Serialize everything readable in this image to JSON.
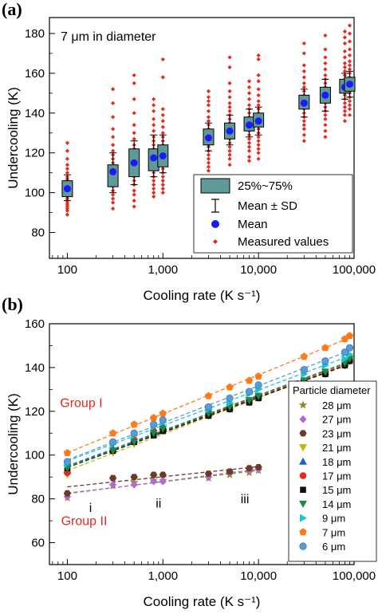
{
  "panel_a": {
    "label": "(a)",
    "annotation": "7 μm in diameter"
  },
  "panel_b": {
    "label": "(b)"
  },
  "chart_data": [
    {
      "type": "box",
      "panel": "(a)",
      "annotation": "7 μm in diameter",
      "xlabel": "Cooling rate (K s⁻¹)",
      "ylabel": "Undercooling (K)",
      "xscale": "log",
      "xlim": [
        65,
        100000
      ],
      "ylim": [
        67,
        188
      ],
      "xticks": [
        100,
        1000,
        10000,
        100000
      ],
      "xtick_labels": [
        "100",
        "1,000",
        "10,000",
        "100,000"
      ],
      "yticks": [
        80,
        100,
        120,
        140,
        160,
        180
      ],
      "legend": {
        "position": "lower-right",
        "entries": [
          "25%~75%",
          "Mean ± SD",
          "Mean",
          "Measured values"
        ]
      },
      "colors": {
        "box": "#5f9998",
        "mean": "#1a1aff",
        "measured": "#e8281e"
      },
      "boxes": [
        {
          "x": 100,
          "mean": 102,
          "q1": 98,
          "q3": 106,
          "sd_low": 96,
          "sd_high": 109,
          "measured": [
            89,
            91,
            92,
            93,
            94,
            95,
            96,
            97,
            98,
            99,
            100,
            101,
            102,
            103,
            104,
            105,
            106,
            107,
            108,
            110,
            112,
            114,
            117,
            121,
            125
          ]
        },
        {
          "x": 300,
          "mean": 110.5,
          "q1": 103,
          "q3": 114,
          "sd_low": 100,
          "sd_high": 120,
          "measured": [
            92,
            95,
            97,
            99,
            101,
            103,
            105,
            107,
            109,
            110,
            111,
            112,
            113,
            115,
            117,
            119,
            121,
            124,
            128,
            132,
            138,
            145,
            152
          ]
        },
        {
          "x": 500,
          "mean": 115,
          "q1": 108,
          "q3": 122,
          "sd_low": 104,
          "sd_high": 126,
          "measured": [
            93,
            96,
            99,
            101,
            104,
            106,
            108,
            110,
            112,
            114,
            115,
            116,
            118,
            120,
            122,
            124,
            127,
            130,
            134,
            140,
            147,
            155,
            159
          ]
        },
        {
          "x": 800,
          "mean": 117.5,
          "q1": 111,
          "q3": 122,
          "sd_low": 108,
          "sd_high": 129,
          "measured": [
            98,
            100,
            102,
            104,
            106,
            108,
            110,
            112,
            114,
            116,
            117,
            118,
            120,
            122,
            124,
            126,
            128,
            131,
            134,
            137,
            141,
            144,
            147
          ]
        },
        {
          "x": 1000,
          "mean": 118.5,
          "q1": 113,
          "q3": 124,
          "sd_low": 110,
          "sd_high": 129,
          "measured": [
            100,
            102,
            104,
            106,
            108,
            110,
            112,
            114,
            116,
            118,
            119,
            120,
            122,
            124,
            126,
            128,
            130,
            133,
            136,
            139,
            142,
            158,
            167
          ]
        },
        {
          "x": 3000,
          "mean": 127.5,
          "q1": 124,
          "q3": 132,
          "sd_low": 121,
          "sd_high": 135,
          "measured": [
            111,
            113,
            115,
            117,
            119,
            121,
            123,
            124,
            125,
            126,
            127,
            128,
            129,
            130,
            132,
            134,
            136,
            138,
            141,
            144,
            146,
            148,
            151
          ]
        },
        {
          "x": 5000,
          "mean": 131,
          "q1": 127,
          "q3": 135,
          "sd_low": 124,
          "sd_high": 139,
          "measured": [
            114,
            117,
            119,
            121,
            123,
            125,
            127,
            129,
            130,
            131,
            132,
            133,
            135,
            137,
            139,
            141,
            143,
            145,
            148,
            151,
            155,
            163,
            168
          ]
        },
        {
          "x": 8000,
          "mean": 134,
          "q1": 131,
          "q3": 138,
          "sd_low": 128,
          "sd_high": 142,
          "measured": [
            116,
            118,
            121,
            123,
            125,
            127,
            129,
            131,
            132,
            133,
            134,
            135,
            136,
            138,
            140,
            142,
            144,
            147,
            150,
            153,
            156
          ]
        },
        {
          "x": 10000,
          "mean": 136,
          "q1": 133,
          "q3": 140,
          "sd_low": 129,
          "sd_high": 143,
          "measured": [
            117,
            120,
            122,
            124,
            126,
            128,
            130,
            132,
            134,
            135,
            136,
            137,
            138,
            140,
            142,
            144,
            146,
            149,
            152,
            156,
            159,
            167,
            169
          ]
        },
        {
          "x": 30000,
          "mean": 145,
          "q1": 142,
          "q3": 149,
          "sd_low": 138,
          "sd_high": 152,
          "measured": [
            126,
            129,
            132,
            134,
            136,
            138,
            140,
            142,
            143,
            144,
            145,
            146,
            147,
            149,
            151,
            153,
            155,
            158,
            161,
            164,
            170,
            175
          ]
        },
        {
          "x": 50000,
          "mean": 149,
          "q1": 145,
          "q3": 153,
          "sd_low": 141,
          "sd_high": 157,
          "measured": [
            128,
            131,
            134,
            137,
            139,
            141,
            143,
            145,
            147,
            148,
            149,
            150,
            151,
            153,
            155,
            157,
            159,
            162,
            165,
            168,
            172,
            179
          ]
        },
        {
          "x": 80000,
          "mean": 153,
          "q1": 150,
          "q3": 157,
          "sd_low": 147,
          "sd_high": 160,
          "measured": [
            136,
            139,
            141,
            143,
            145,
            147,
            149,
            150,
            151,
            152,
            153,
            154,
            155,
            157,
            159,
            161,
            163,
            165,
            168,
            171,
            175,
            178,
            181
          ]
        },
        {
          "x": 90000,
          "mean": 154.5,
          "q1": 151,
          "q3": 158,
          "sd_low": 148,
          "sd_high": 161,
          "measured": [
            139,
            142,
            144,
            146,
            148,
            150,
            151,
            152,
            153,
            154,
            155,
            156,
            157,
            158,
            160,
            162,
            164,
            166,
            169,
            172,
            176,
            180,
            184
          ]
        }
      ]
    },
    {
      "type": "scatter",
      "panel": "(b)",
      "xlabel": "Cooling rate (K s⁻¹)",
      "ylabel": "Undercooling (K)",
      "xscale": "log",
      "xlim": [
        65,
        100000
      ],
      "ylim": [
        50,
        160
      ],
      "xticks": [
        100,
        1000,
        10000,
        100000
      ],
      "xtick_labels": [
        "100",
        "1,000",
        "10,000",
        "100,000"
      ],
      "yticks": [
        60,
        80,
        100,
        120,
        140,
        160
      ],
      "legend": {
        "title": "Particle diameter",
        "position": "right"
      },
      "annotations": [
        {
          "text": "Group I",
          "x": 140,
          "y": 122,
          "color": "#e8281e"
        },
        {
          "text": "Group II",
          "x": 150,
          "y": 68,
          "color": "#e8281e"
        },
        {
          "text": "i",
          "x": 175,
          "y": 74
        },
        {
          "text": "ii",
          "x": 900,
          "y": 76
        },
        {
          "text": "iii",
          "x": 7200,
          "y": 78
        }
      ],
      "series": [
        {
          "name": "28 μm",
          "color": "#8c8a1c",
          "marker": "star",
          "group": "II",
          "x": [
            100,
            300,
            500,
            800,
            1000,
            3000,
            5000,
            8000,
            10000
          ],
          "y": [
            80.5,
            86,
            87.5,
            88.5,
            88.5,
            89.5,
            91,
            92,
            93
          ]
        },
        {
          "name": "27 μm",
          "color": "#b06ad6",
          "marker": "diamond",
          "group": "II",
          "x": [
            100,
            300,
            500,
            800,
            1000,
            3000,
            5000,
            8000,
            10000
          ],
          "y": [
            81,
            86.5,
            86.5,
            88,
            88,
            90,
            92,
            93,
            93.5
          ]
        },
        {
          "name": "23 μm",
          "color": "#6b3a2a",
          "marker": "hexagon",
          "group": "II",
          "x": [
            100,
            300,
            500,
            800,
            1000,
            3000,
            5000,
            8000,
            10000
          ],
          "y": [
            82.5,
            89.5,
            90,
            91,
            91,
            91.5,
            92.5,
            94,
            94.5
          ]
        },
        {
          "name": "21 μm",
          "color": "#d2b400",
          "marker": "triangle-down",
          "group": "I",
          "x": [
            100,
            300,
            500,
            800,
            1000,
            3000,
            5000,
            8000,
            10000,
            30000,
            50000,
            80000,
            90000
          ],
          "y": [
            91,
            101,
            105,
            109,
            111,
            118,
            121,
            124,
            126,
            133,
            137,
            141,
            143
          ]
        },
        {
          "name": "18 μm",
          "color": "#1f63c8",
          "marker": "triangle-up",
          "group": "I",
          "x": [
            100,
            300,
            500,
            800,
            1000,
            3000,
            5000,
            8000,
            10000,
            30000,
            50000,
            80000,
            90000
          ],
          "y": [
            93,
            103,
            107,
            111,
            113,
            119,
            122,
            125,
            127,
            134,
            138,
            142,
            144
          ]
        },
        {
          "name": "17 μm",
          "color": "#e8281e",
          "marker": "circle",
          "group": "I",
          "x": [
            100,
            300,
            500,
            800,
            1000,
            3000,
            5000,
            8000,
            10000,
            30000,
            50000,
            80000,
            90000
          ],
          "y": [
            92,
            102,
            107,
            111,
            112,
            118,
            121,
            125,
            127,
            134,
            137,
            141,
            143
          ]
        },
        {
          "name": "15 μm",
          "color": "#111111",
          "marker": "square",
          "group": "I",
          "x": [
            100,
            300,
            500,
            800,
            1000,
            3000,
            5000,
            8000,
            10000,
            30000,
            50000,
            80000,
            90000
          ],
          "y": [
            94,
            102,
            106,
            109,
            111,
            118,
            121,
            124,
            126,
            133,
            137,
            141,
            143
          ]
        },
        {
          "name": "14 μm",
          "color": "#1a8a4a",
          "marker": "triangle-down",
          "group": "I",
          "x": [
            100,
            300,
            500,
            800,
            1000,
            3000,
            5000,
            8000,
            10000,
            30000,
            50000,
            80000,
            90000
          ],
          "y": [
            94,
            102,
            106,
            110,
            112,
            119,
            122,
            125,
            127,
            134,
            138,
            142,
            144
          ]
        },
        {
          "name": "9 μm",
          "color": "#1fc3cf",
          "marker": "triangle-right",
          "group": "I",
          "x": [
            100,
            300,
            500,
            800,
            1000,
            3000,
            5000,
            8000,
            10000,
            30000,
            50000,
            80000,
            90000
          ],
          "y": [
            96,
            105,
            109,
            113,
            115,
            121,
            124,
            128,
            130,
            137,
            141,
            144,
            146
          ]
        },
        {
          "name": "7 μm",
          "color": "#ff7a1a",
          "marker": "pentagon",
          "group": "I",
          "x": [
            100,
            300,
            500,
            800,
            1000,
            3000,
            5000,
            8000,
            10000,
            30000,
            50000,
            80000,
            90000
          ],
          "y": [
            101,
            110,
            114,
            117,
            119,
            127,
            131,
            134,
            136,
            145,
            149,
            153,
            154.5
          ]
        },
        {
          "name": "6 μm",
          "color": "#5a9bd6",
          "marker": "sphere",
          "group": "I",
          "x": [
            100,
            300,
            500,
            800,
            1000,
            3000,
            5000,
            8000,
            10000,
            30000,
            50000,
            80000,
            90000
          ],
          "y": [
            97,
            106,
            110,
            114,
            116,
            122,
            126,
            129,
            132,
            139,
            143,
            147,
            149
          ]
        }
      ]
    }
  ]
}
